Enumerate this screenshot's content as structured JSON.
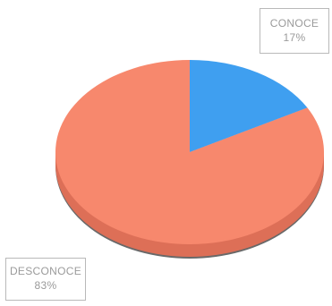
{
  "colors": {
    "conoce": "#3f9ff0",
    "desconoce": "#f7886d",
    "desconoce_side": "#dd6f57",
    "conoce_side": "#2f7fc4",
    "shadow": "#2a2a2a"
  },
  "chart_data": {
    "type": "pie",
    "title": "",
    "categories": [
      "CONOCE",
      "DESCONOCE"
    ],
    "values": [
      17,
      83
    ],
    "labels": [
      {
        "name": "CONOCE",
        "value": "17%"
      },
      {
        "name": "DESCONOCE",
        "value": "83%"
      }
    ],
    "legend": "none",
    "style": "3d"
  }
}
